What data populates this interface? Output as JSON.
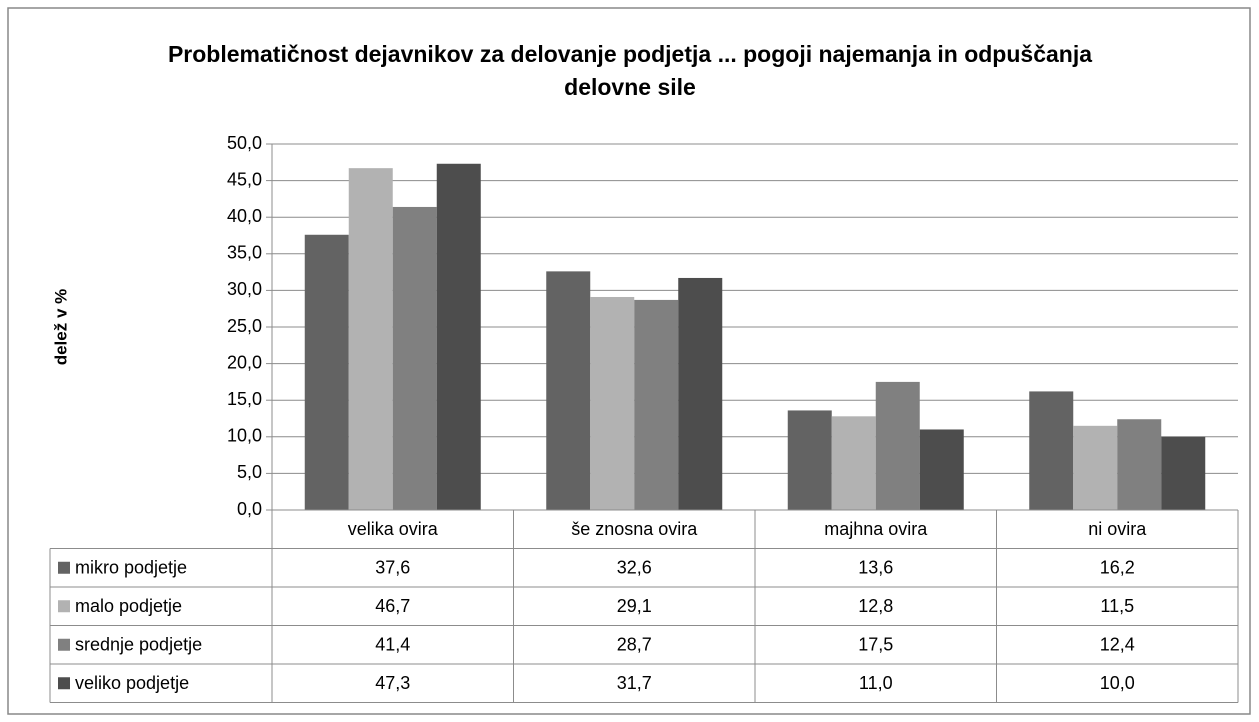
{
  "chart_data": {
    "type": "bar",
    "title": "Problematičnost dejavnikov za delovanje podjetja ... pogoji najemanja in odpuščanja delovne sile",
    "y_label": "delež v %",
    "categories": [
      "velika ovira",
      "še znosna ovira",
      "majhna ovira",
      "ni ovira"
    ],
    "series": [
      {
        "name": "mikro podjetje",
        "color": "#636363",
        "values": [
          37.6,
          32.6,
          13.6,
          16.2
        ],
        "value_labels": [
          "37,6",
          "32,6",
          "13,6",
          "16,2"
        ]
      },
      {
        "name": "malo podjetje",
        "color": "#b2b2b2",
        "values": [
          46.7,
          29.1,
          12.8,
          11.5
        ],
        "value_labels": [
          "46,7",
          "29,1",
          "12,8",
          "11,5"
        ]
      },
      {
        "name": "srednje podjetje",
        "color": "#808080",
        "values": [
          41.4,
          28.7,
          17.5,
          12.4
        ],
        "value_labels": [
          "41,4",
          "28,7",
          "17,5",
          "12,4"
        ]
      },
      {
        "name": "veliko podjetje",
        "color": "#4d4d4d",
        "values": [
          47.3,
          31.7,
          11.0,
          10.0
        ],
        "value_labels": [
          "47,3",
          "31,7",
          "11,0",
          "10,0"
        ]
      }
    ],
    "ylim": [
      0,
      50
    ],
    "yticks": [
      {
        "value": 0,
        "label": "0,0"
      },
      {
        "value": 5,
        "label": "5,0"
      },
      {
        "value": 10,
        "label": "10,0"
      },
      {
        "value": 15,
        "label": "15,0"
      },
      {
        "value": 20,
        "label": "20,0"
      },
      {
        "value": 25,
        "label": "25,0"
      },
      {
        "value": 30,
        "label": "30,0"
      },
      {
        "value": 35,
        "label": "35,0"
      },
      {
        "value": 40,
        "label": "40,0"
      },
      {
        "value": 45,
        "label": "45,0"
      },
      {
        "value": 50,
        "label": "50,0"
      }
    ],
    "grid": true
  }
}
